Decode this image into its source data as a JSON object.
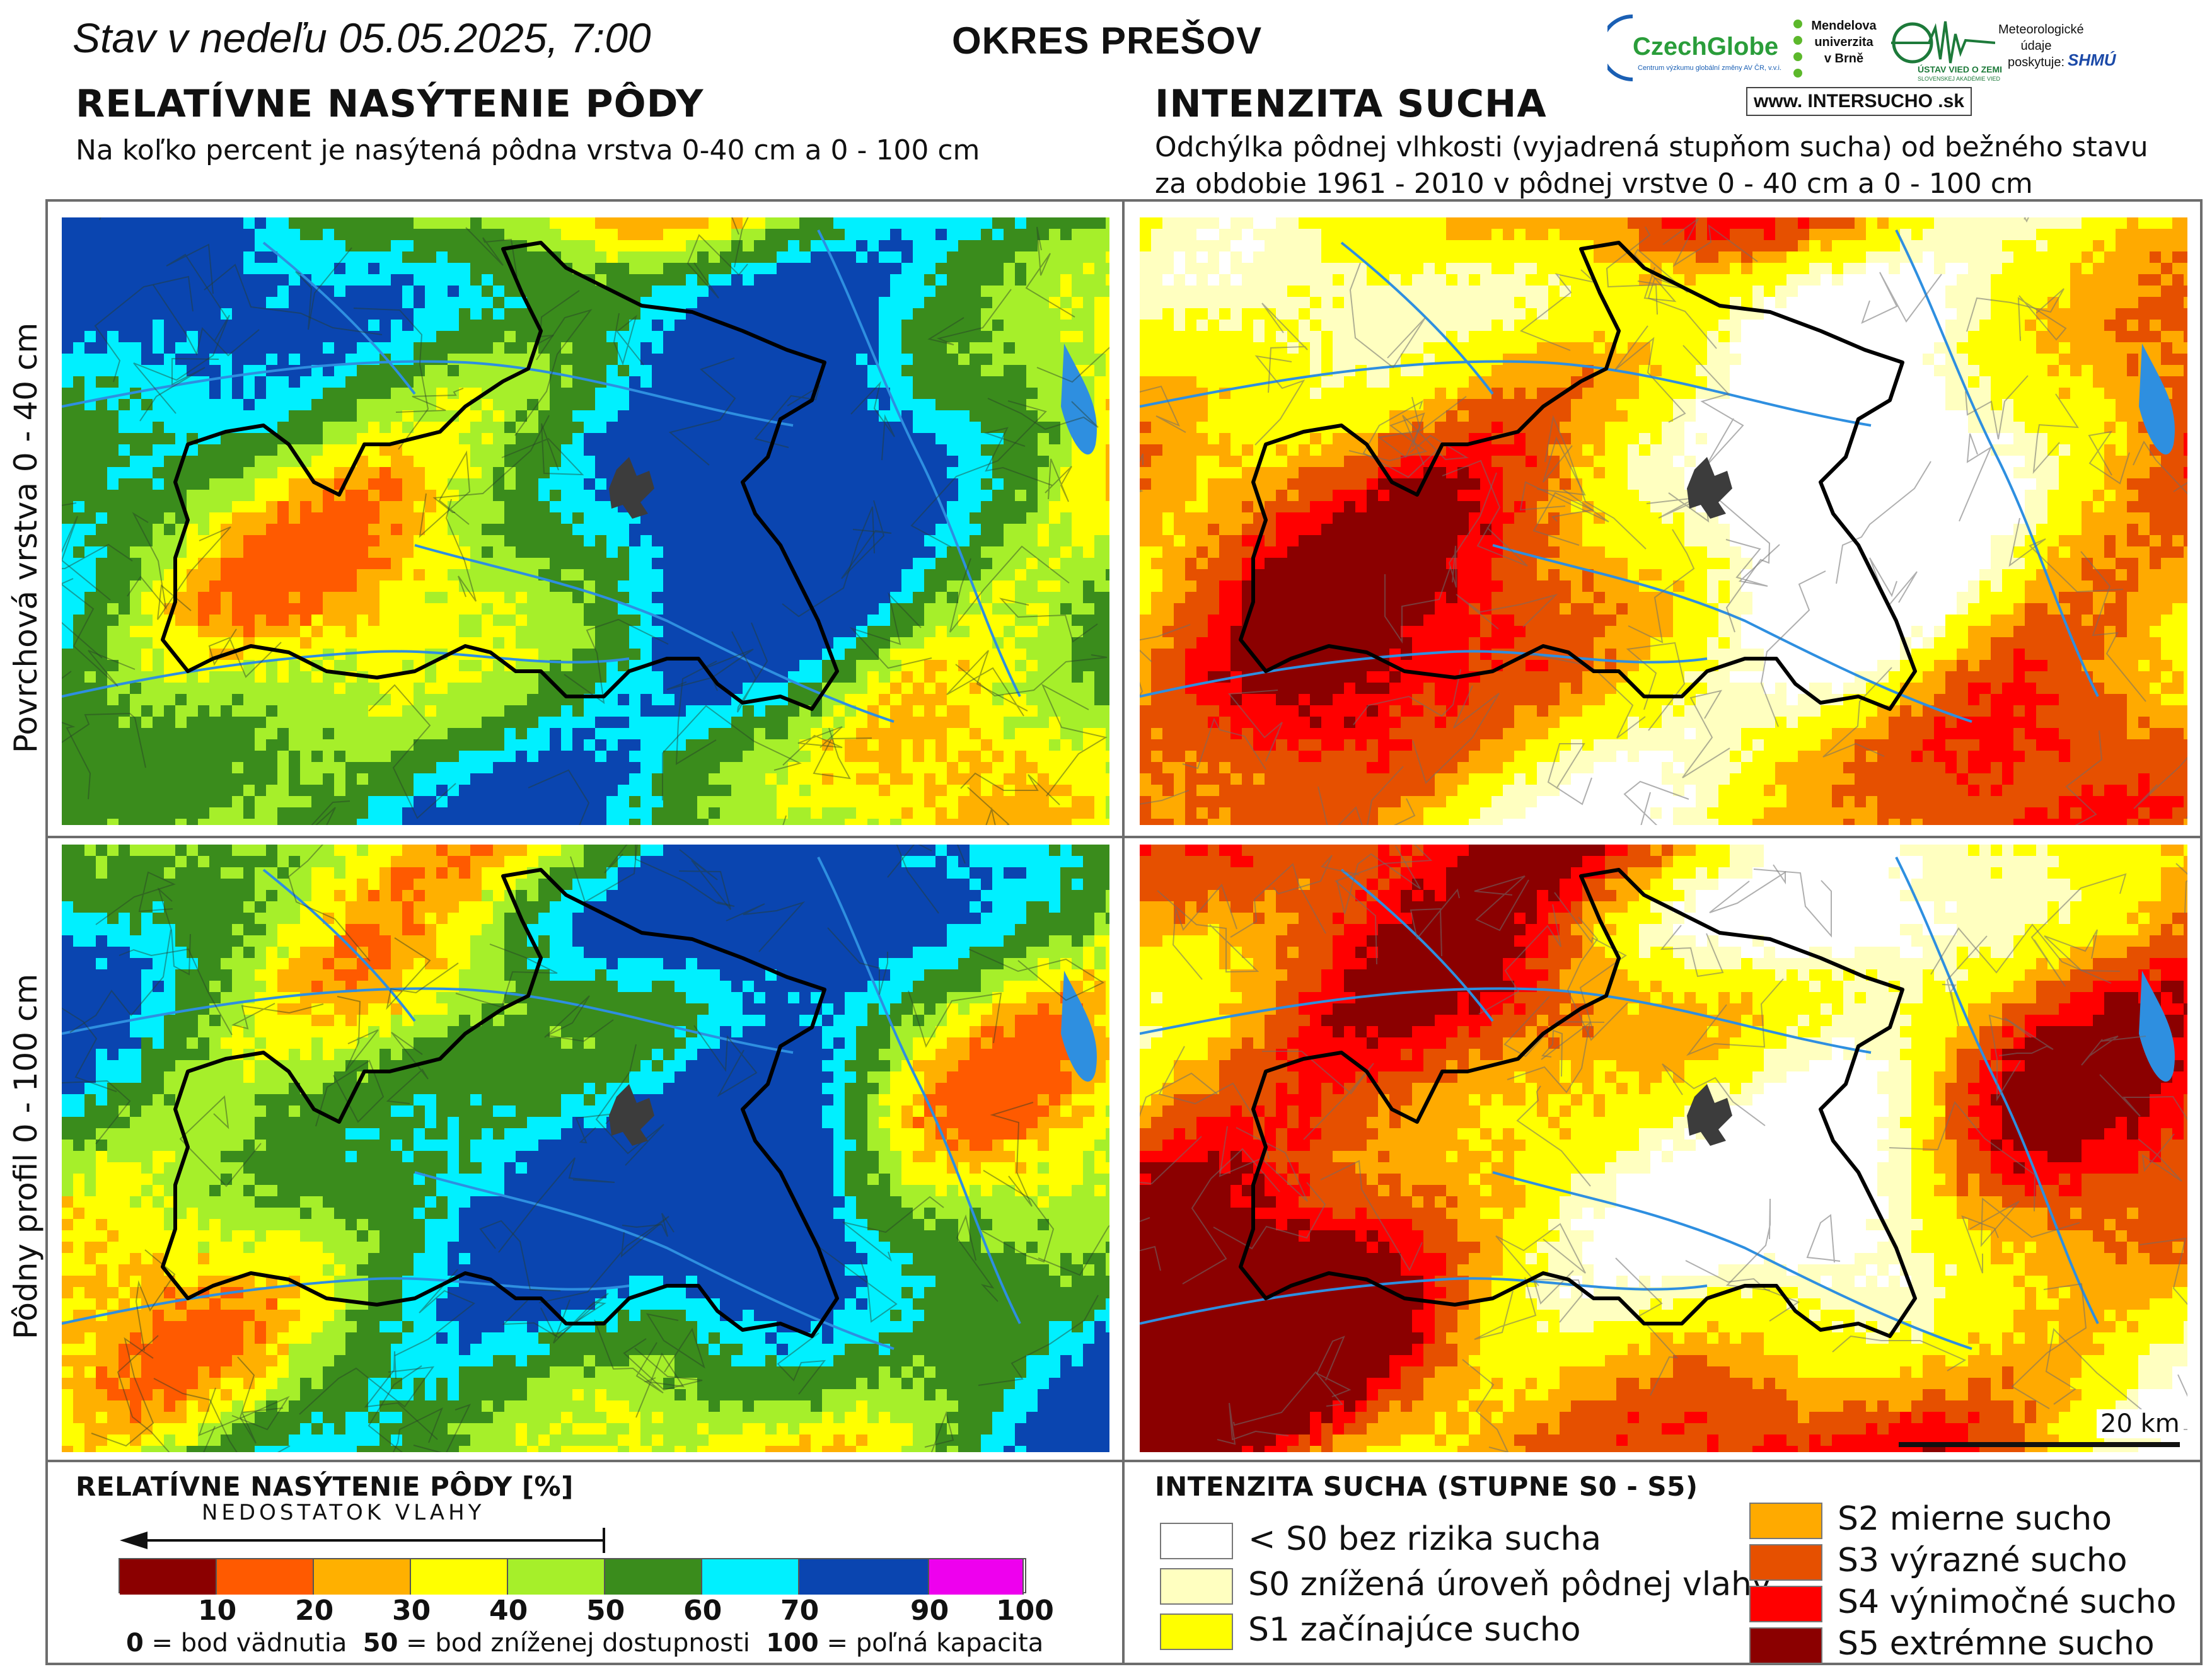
{
  "header": {
    "date_label": "Stav v nedeľu 05.05.2025, 7:00",
    "district": "OKRES PREŠOV"
  },
  "logos": {
    "czechglobe": "CzechGlobe",
    "czechglobe_sub": "Centrum výzkumu globální změny AV ČR, v.v.i.",
    "mendel": "Mendelova univerzita v Brně",
    "ustav": "ÚSTAV VIED O ZEMI",
    "ustav_sub": "SLOVENSKEJ AKADÉMIE VIED",
    "meteo": "Meteorologické údaje poskytuje:",
    "shmu": "SHMÚ",
    "intersucho": "www. INTERSUCHO .sk"
  },
  "left_section": {
    "title": "RELATÍVNE NASÝTENIE PÔDY",
    "subtitle": "Na koľko percent je nasýtená pôdna vrstva 0-40 cm a 0 - 100 cm"
  },
  "right_section": {
    "title": "INTENZITA SUCHA",
    "subtitle_line1": "Odchýlka pôdnej vlhkosti (vyjadrená stupňom sucha) od bežného stavu",
    "subtitle_line2": "za obdobie 1961 - 2010 v pôdnej vrstve 0 - 40 cm a 0 - 100 cm"
  },
  "row_labels": {
    "top": "Povrchová vrstva 0 - 40 cm",
    "bottom": "Pôdny profil 0 - 100 cm"
  },
  "scale_bar": "20 km",
  "saturation_legend": {
    "title": "RELATÍVNE NASÝTENIE PÔDY [%]",
    "arrow_label": "NEDOSTATOK VLAHY",
    "colors": [
      "#8b0000",
      "#ff5a00",
      "#ffb000",
      "#ffff00",
      "#a6ef2a",
      "#3a8c1c",
      "#00f0ff",
      "#0a45b0",
      "#ee00ee"
    ],
    "ticks": [
      "10",
      "20",
      "30",
      "40",
      "50",
      "60",
      "70",
      "90",
      "100"
    ],
    "footnote_0": "0",
    "footnote_0_text": " = bod vädnutia",
    "footnote_50": "50",
    "footnote_50_text": " = bod zníženej dostupnosti",
    "footnote_100": "100",
    "footnote_100_text": " = poľná kapacita"
  },
  "drought_legend": {
    "title": "INTENZITA SUCHA (STUPNE S0 - S5)",
    "items": [
      {
        "label": "< S0 bez rizika sucha",
        "color": "#ffffff"
      },
      {
        "label": "S0 znížená úroveň pôdnej vlahy",
        "color": "#ffffc0"
      },
      {
        "label": "S1 začínajúce sucho",
        "color": "#ffff00"
      },
      {
        "label": "S2 mierne sucho",
        "color": "#ffaa00"
      },
      {
        "label": "S3 výrazné sucho",
        "color": "#e65000"
      },
      {
        "label": "S4 výnimočné sucho",
        "color": "#ff0000"
      },
      {
        "label": "S5 extrémne sucho",
        "color": "#8b0000"
      }
    ]
  }
}
